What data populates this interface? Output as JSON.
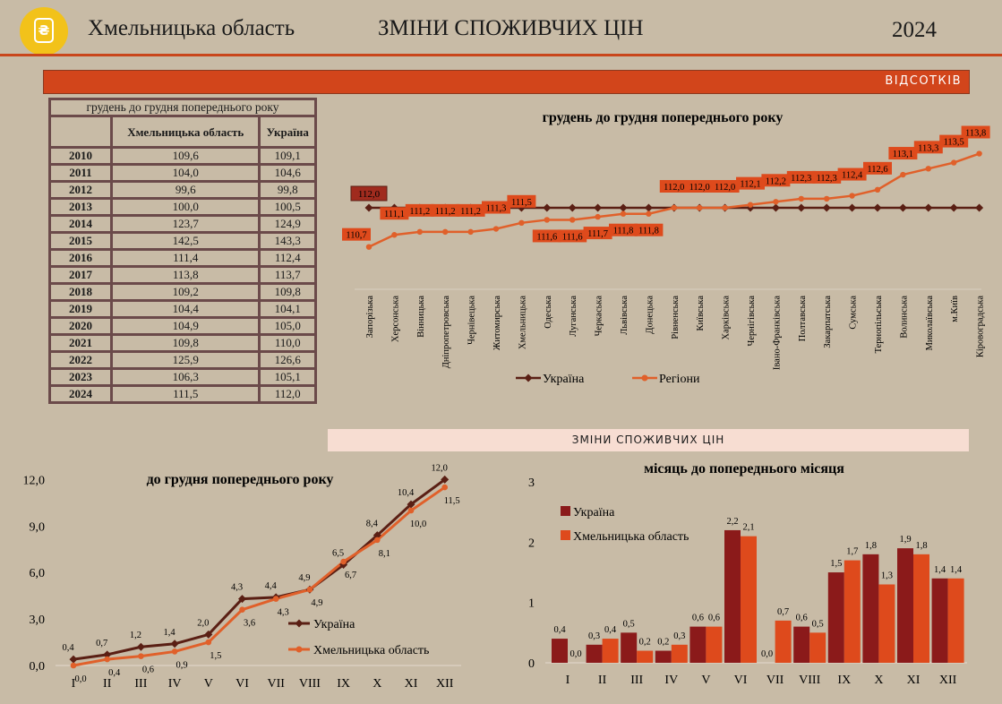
{
  "header": {
    "region": "Хмельницька область",
    "title": "ЗМІНИ СПОЖИВЧИХ ЦІН",
    "year": "2024"
  },
  "banner": "ВІДСОТКІВ",
  "section_strip": "ЗМІНИ СПОЖИВЧИХ ЦІН",
  "table": {
    "caption": "грудень до грудня попереднього року",
    "col1": "Хмельницька область",
    "col2": "Україна",
    "rows": [
      {
        "year": "2010",
        "region": "109,6",
        "ukraine": "109,1"
      },
      {
        "year": "2011",
        "region": "104,0",
        "ukraine": "104,6"
      },
      {
        "year": "2012",
        "region": "99,6",
        "ukraine": "99,8"
      },
      {
        "year": "2013",
        "region": "100,0",
        "ukraine": "100,5"
      },
      {
        "year": "2014",
        "region": "123,7",
        "ukraine": "124,9"
      },
      {
        "year": "2015",
        "region": "142,5",
        "ukraine": "143,3"
      },
      {
        "year": "2016",
        "region": "111,4",
        "ukraine": "112,4"
      },
      {
        "year": "2017",
        "region": "113,8",
        "ukraine": "113,7"
      },
      {
        "year": "2018",
        "region": "109,2",
        "ukraine": "109,8"
      },
      {
        "year": "2019",
        "region": "104,4",
        "ukraine": "104,1"
      },
      {
        "year": "2020",
        "region": "104,9",
        "ukraine": "105,0"
      },
      {
        "year": "2021",
        "region": "109,8",
        "ukraine": "110,0"
      },
      {
        "year": "2022",
        "region": "125,9",
        "ukraine": "126,6"
      },
      {
        "year": "2023",
        "region": "106,3",
        "ukraine": "105,1"
      },
      {
        "year": "2024",
        "region": "111,5",
        "ukraine": "112,0"
      }
    ]
  },
  "chart_data": [
    {
      "type": "line",
      "title": "грудень до грудня попереднього року",
      "categories": [
        "Запорізька",
        "Херсонська",
        "Вінницька",
        "Дніпропетровська",
        "Чернівецька",
        "Житомирська",
        "Хмельницька",
        "Одеська",
        "Луганська",
        "Черкаська",
        "Львівська",
        "Донецька",
        "Рівненська",
        "Київська",
        "Харківська",
        "Чернігівська",
        "Івано-Франківська",
        "Полтавська",
        "Закарпатська",
        "Сумська",
        "Тернопільська",
        "Волинська",
        "Миколаївська",
        "м.Київ",
        "Кіровоградська"
      ],
      "series": [
        {
          "name": "Україна",
          "color": "#5a1f14",
          "values": [
            112.0,
            112.0,
            112.0,
            112.0,
            112.0,
            112.0,
            112.0,
            112.0,
            112.0,
            112.0,
            112.0,
            112.0,
            112.0,
            112.0,
            112.0,
            112.0,
            112.0,
            112.0,
            112.0,
            112.0,
            112.0,
            112.0,
            112.0,
            112.0,
            112.0
          ],
          "label_index": 0,
          "label": "112,0"
        },
        {
          "name": "Регіони",
          "color": "#e0602a",
          "values": [
            110.7,
            111.1,
            111.2,
            111.2,
            111.2,
            111.3,
            111.5,
            111.6,
            111.6,
            111.7,
            111.8,
            111.8,
            112.0,
            112.0,
            112.0,
            112.1,
            112.2,
            112.3,
            112.3,
            112.4,
            112.6,
            113.1,
            113.3,
            113.5,
            113.8
          ],
          "labels": [
            "110,7",
            "111,1",
            "111,2",
            "111,2",
            "111,2",
            "111,3",
            "111,5",
            "111,6",
            "111,6",
            "111,7",
            "111,8",
            "111,8",
            "112,0",
            "112,0",
            "112,0",
            "112,1",
            "112,2",
            "112,3",
            "112,3",
            "112,4",
            "112,6",
            "113,1",
            "113,3",
            "113,5",
            "113,8"
          ]
        }
      ],
      "legend": "bottom"
    },
    {
      "type": "line",
      "title": "до грудня попереднього року",
      "categories": [
        "I",
        "II",
        "III",
        "IV",
        "V",
        "VI",
        "VII",
        "VIII",
        "IX",
        "X",
        "XI",
        "XII"
      ],
      "ylim": [
        0,
        12
      ],
      "yticks": [
        "0,0",
        "3,0",
        "6,0",
        "9,0",
        "12,0"
      ],
      "series": [
        {
          "name": "Україна",
          "color": "#5a1f14",
          "values": [
            0.4,
            0.7,
            1.2,
            1.4,
            2.0,
            4.3,
            4.4,
            4.9,
            6.5,
            8.4,
            10.4,
            12.0
          ],
          "labels": [
            "0,4",
            "0,7",
            "1,2",
            "1,4",
            "2,0",
            "4,3",
            "4,4",
            "4,9",
            "6,5",
            "8,4",
            "10,4",
            "12,0"
          ]
        },
        {
          "name": "Хмельницька область",
          "color": "#e0602a",
          "values": [
            0.0,
            0.4,
            0.6,
            0.9,
            1.5,
            3.6,
            4.3,
            4.9,
            6.7,
            8.1,
            10.0,
            11.5
          ],
          "labels": [
            "0,0",
            "0,4",
            "0,6",
            "0,9",
            "1,5",
            "3,6",
            "4,3",
            "4,9",
            "6,7",
            "8,1",
            "10,0",
            "11,5"
          ]
        }
      ],
      "legend": "right"
    },
    {
      "type": "bar",
      "title": "місяць до попереднього місяця",
      "categories": [
        "I",
        "II",
        "III",
        "IV",
        "V",
        "VI",
        "VII",
        "VIII",
        "IX",
        "X",
        "XI",
        "XII"
      ],
      "ylim": [
        0,
        3
      ],
      "yticks": [
        "0",
        "1",
        "2",
        "3"
      ],
      "series": [
        {
          "name": "Україна",
          "color": "#8b1a1a",
          "values": [
            0.4,
            0.3,
            0.5,
            0.2,
            0.6,
            2.2,
            0.0,
            0.6,
            1.5,
            1.8,
            1.9,
            1.4
          ],
          "labels": [
            "0,4",
            "0,3",
            "0,5",
            "0,2",
            "0,6",
            "2,2",
            "0,0",
            "0,6",
            "1,5",
            "1,8",
            "1,9",
            "1,4"
          ]
        },
        {
          "name": "Хмельницька область",
          "color": "#de4a1c",
          "values": [
            0.0,
            0.4,
            0.2,
            0.3,
            0.6,
            2.1,
            0.7,
            0.5,
            1.7,
            1.3,
            1.8,
            1.4
          ],
          "labels": [
            "0,0",
            "0,4",
            "0,2",
            "0,3",
            "0,6",
            "2,1",
            "0,7",
            "0,5",
            "1,7",
            "1,3",
            "1,8",
            "1,4"
          ]
        }
      ],
      "legend": "top-left"
    }
  ]
}
